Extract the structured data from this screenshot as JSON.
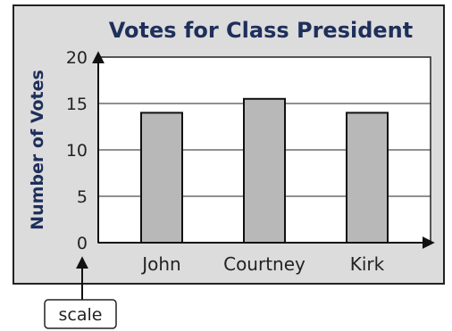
{
  "chart_data": {
    "type": "bar",
    "title": "Votes for Class President",
    "xlabel": "",
    "ylabel": "Number of Votes",
    "categories": [
      "John",
      "Courtney",
      "Kirk"
    ],
    "values": [
      14,
      15.5,
      14
    ],
    "ylim": [
      0,
      20
    ],
    "yticks": [
      "0",
      "5",
      "10",
      "15",
      "20"
    ],
    "grid": true,
    "colors": {
      "panel": "#dcdcdc",
      "bar": "#b8b8b8",
      "plot": "#ffffff",
      "title": "#1e2f5a"
    }
  },
  "annotation": {
    "label": "scale"
  }
}
